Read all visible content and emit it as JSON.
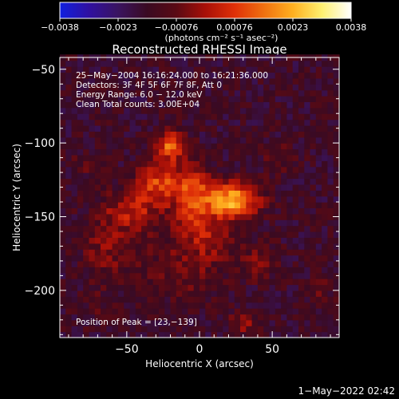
{
  "chart_data": {
    "type": "heatmap",
    "title": "Reconstructed RHESSI Image",
    "xlabel": "Heliocentric X (arcsec)",
    "ylabel": "Heliocentric Y (arcsec)",
    "xlim": [
      -96,
      96
    ],
    "ylim": [
      -232,
      -42
    ],
    "x_ticks": [
      -50,
      0,
      50
    ],
    "y_ticks": [
      -50,
      -100,
      -150,
      -200
    ],
    "x_tick_labels": [
      "−50",
      "0",
      "50"
    ],
    "y_tick_labels": [
      "−50",
      "−100",
      "−150",
      "−200"
    ],
    "colorbar": {
      "range": [
        -0.0038,
        0.0038
      ],
      "tick_labels": [
        "−0.0038",
        "−0.0023",
        "−0.00076",
        "0.00076",
        "0.0023",
        "0.0038"
      ],
      "units": "(photons cm⁻² s⁻¹ asec⁻²)",
      "colors": [
        "#1020e0",
        "#3010a0",
        "#3a1460",
        "#3a0a22",
        "#5a0a14",
        "#a81008",
        "#e03008",
        "#f07010",
        "#ffb020",
        "#fff070",
        "#ffffff"
      ]
    },
    "annotations": [
      "25−May−2004 16:16:24.000 to 16:21:36.000",
      "Detectors: 3F 4F 5F 6F 7F 8F, Att 0",
      "Energy Range: 6.0 − 12.0 keV",
      "Clean    Total counts: 3.00E+04",
      "Position of Peak = [23,−139]"
    ],
    "peak": [
      23,
      -139
    ],
    "peak_value": 0.0038,
    "sources": [
      {
        "x": 23,
        "y": -139,
        "sx": 12,
        "sy": 8,
        "amp": 0.0038
      },
      {
        "x": -20,
        "y": -102,
        "sx": 7,
        "sy": 7,
        "amp": 0.0027
      },
      {
        "x": -28,
        "y": -126,
        "sx": 10,
        "sy": 9,
        "amp": 0.0022
      },
      {
        "x": -5,
        "y": -135,
        "sx": 10,
        "sy": 14,
        "amp": 0.0024
      },
      {
        "x": -45,
        "y": -145,
        "sx": 14,
        "sy": 10,
        "amp": 0.0016
      },
      {
        "x": -62,
        "y": -170,
        "sx": 14,
        "sy": 16,
        "amp": 0.001
      },
      {
        "x": 5,
        "y": -162,
        "sx": 12,
        "sy": 10,
        "amp": 0.0014
      },
      {
        "x": -10,
        "y": -185,
        "sx": 18,
        "sy": 14,
        "amp": 0.0009
      },
      {
        "x": 40,
        "y": -180,
        "sx": 10,
        "sy": 9,
        "amp": 0.0008
      },
      {
        "x": 55,
        "y": -110,
        "sx": 9,
        "sy": 8,
        "amp": 0.0006
      },
      {
        "x": -80,
        "y": -115,
        "sx": 7,
        "sy": 7,
        "amp": 0.0005
      },
      {
        "x": 30,
        "y": -222,
        "sx": 6,
        "sy": 6,
        "amp": 0.0012
      },
      {
        "x": 82,
        "y": -200,
        "sx": 8,
        "sy": 8,
        "amp": 0.0005
      },
      {
        "x": -70,
        "y": -210,
        "sx": 10,
        "sy": 8,
        "amp": 0.0004
      }
    ],
    "background": -0.0015
  },
  "footer": {
    "timestamp": "1−May−2022 02:42"
  }
}
